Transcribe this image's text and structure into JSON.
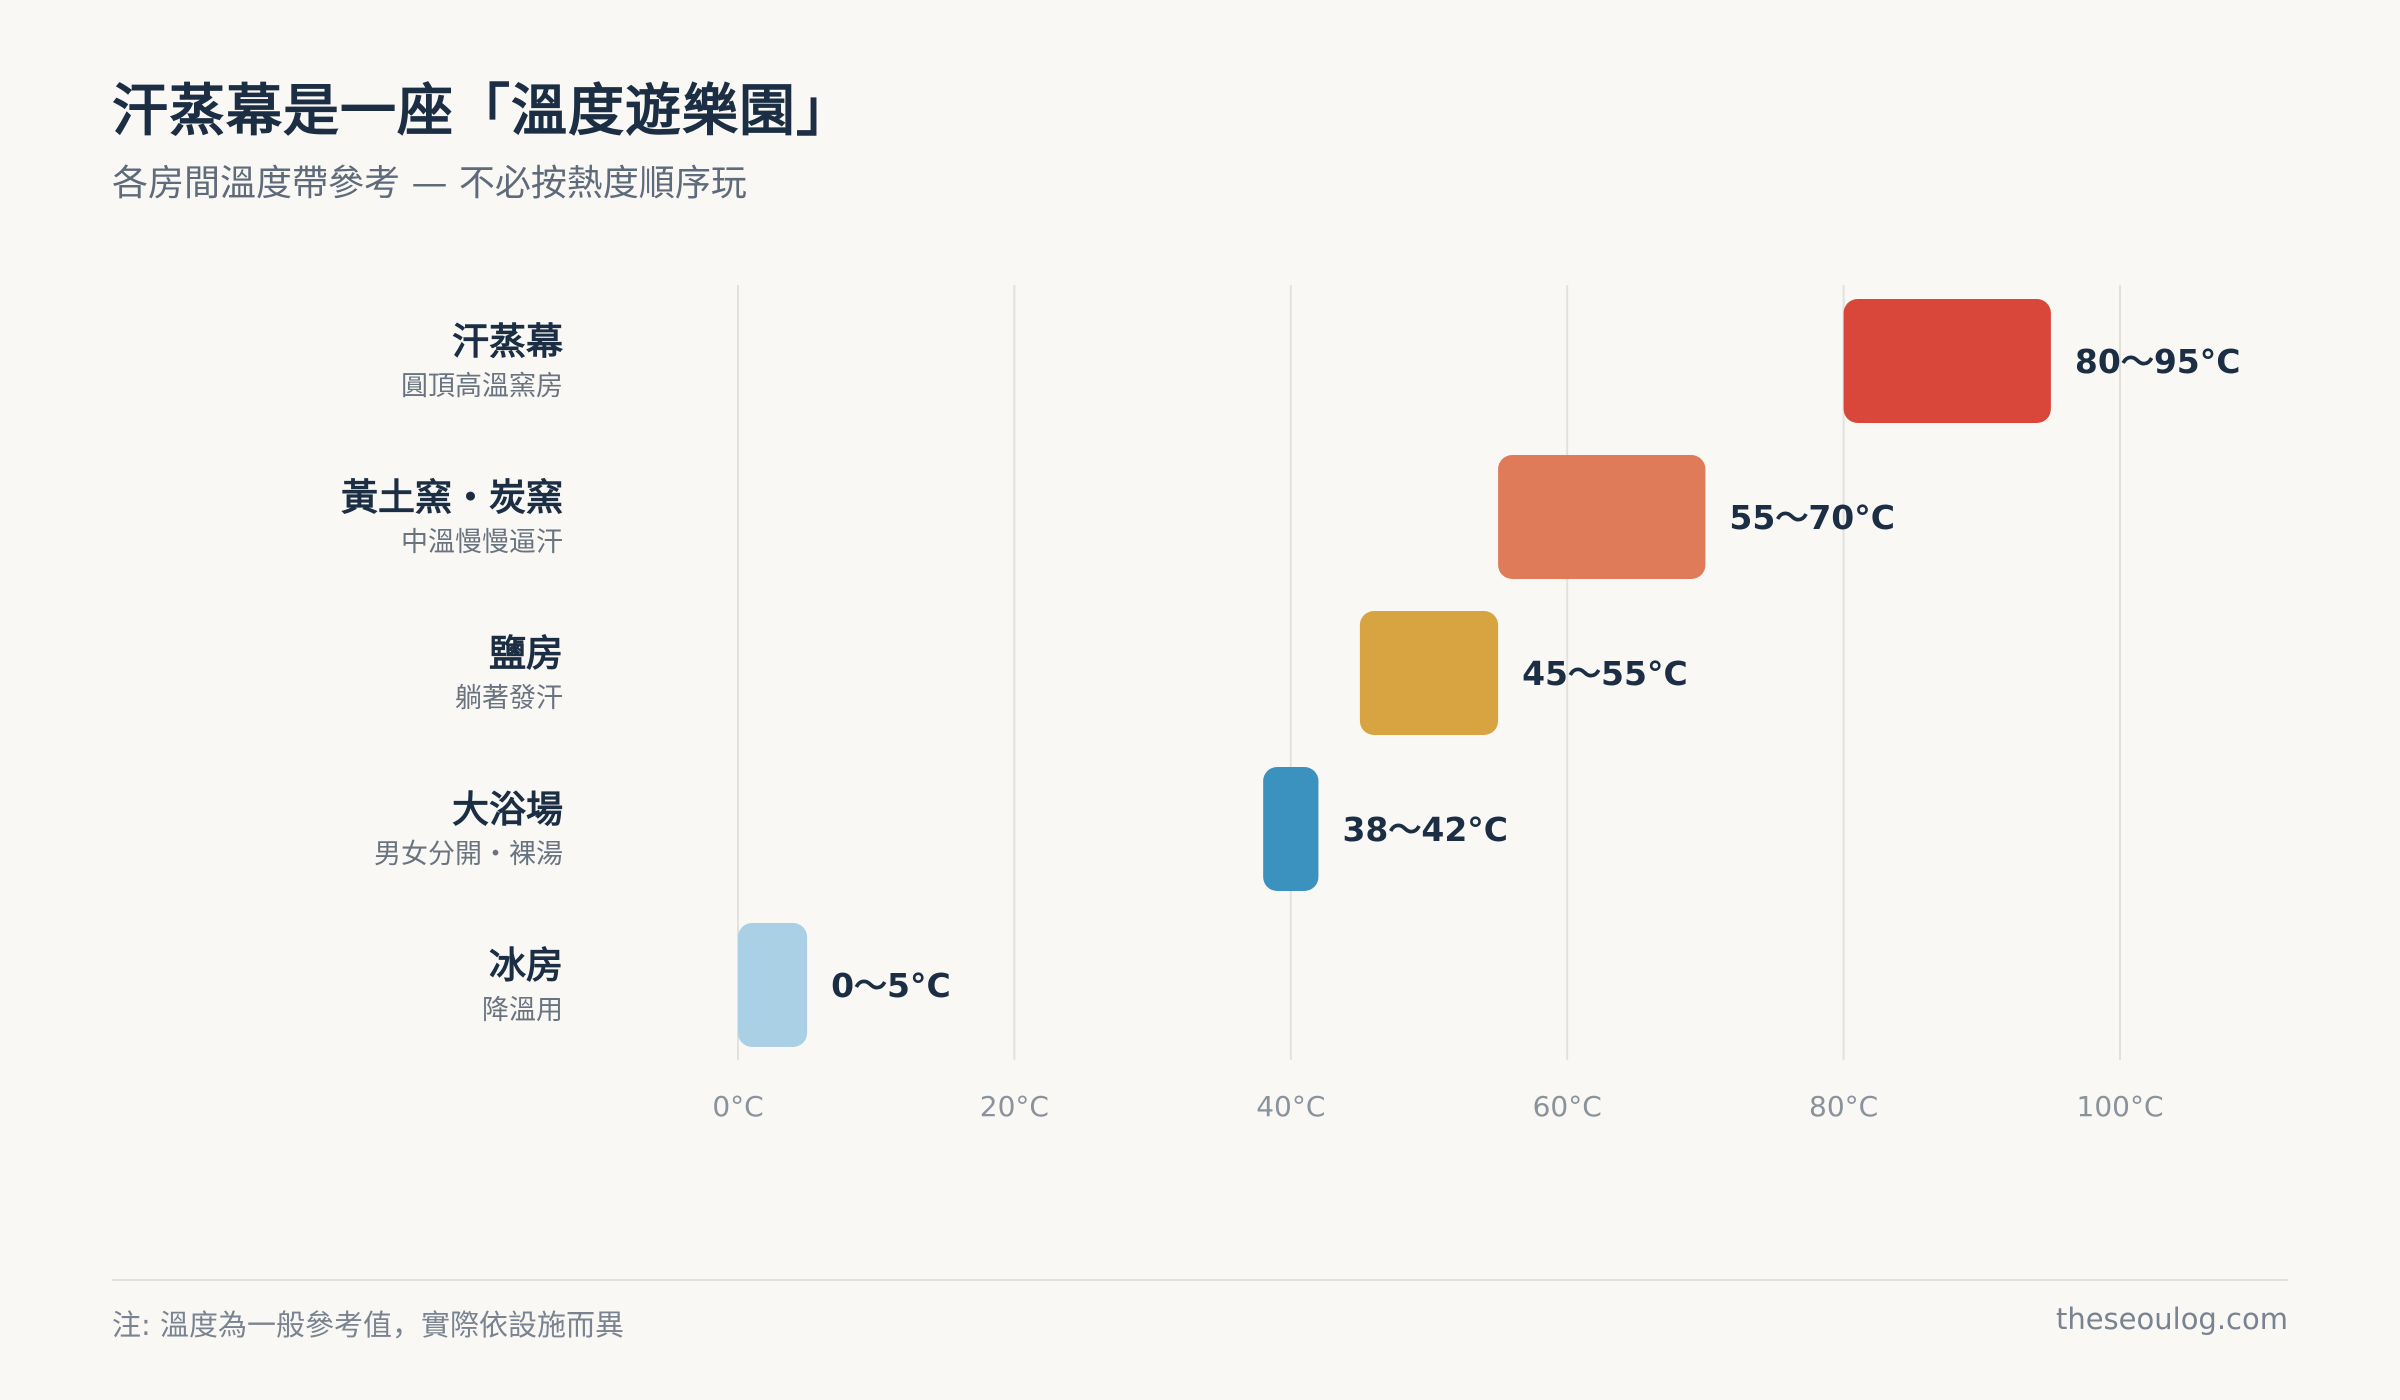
{
  "header": {
    "title": "汗蒸幕是一座「溫度遊樂園」",
    "subtitle": "各房間溫度帶參考 — 不必按熱度順序玩"
  },
  "chart_data": {
    "type": "bar",
    "orientation": "horizontal-range",
    "title": "汗蒸幕是一座「溫度遊樂園」",
    "subtitle": "各房間溫度帶參考 — 不必按熱度順序玩",
    "xlim": [
      0,
      100
    ],
    "x_ticks": [
      0,
      20,
      40,
      60,
      80,
      100
    ],
    "x_tick_labels": [
      "0°C",
      "20°C",
      "40°C",
      "60°C",
      "80°C",
      "100°C"
    ],
    "grid": "vertical",
    "rooms": [
      {
        "name": "汗蒸幕",
        "desc": "圓頂高溫窯房",
        "low": 80,
        "high": 95,
        "label": "80〜95°C",
        "color": "#d9473b"
      },
      {
        "name": "黃土窯・炭窯",
        "desc": "中溫慢慢逼汗",
        "low": 55,
        "high": 70,
        "label": "55〜70°C",
        "color": "#e07b5a"
      },
      {
        "name": "鹽房",
        "desc": "躺著發汗",
        "low": 45,
        "high": 55,
        "label": "45〜55°C",
        "color": "#d8a441"
      },
      {
        "name": "大浴場",
        "desc": "男女分開・裸湯",
        "low": 38,
        "high": 42,
        "label": "38〜42°C",
        "color": "#3b92be"
      },
      {
        "name": "冰房",
        "desc": "降溫用",
        "low": 0,
        "high": 5,
        "label": "0〜5°C",
        "color": "#a9d0e4"
      }
    ]
  },
  "footer": {
    "note": "注: 溫度為一般參考值，實際依設施而異",
    "site": "theseoulog.com"
  }
}
